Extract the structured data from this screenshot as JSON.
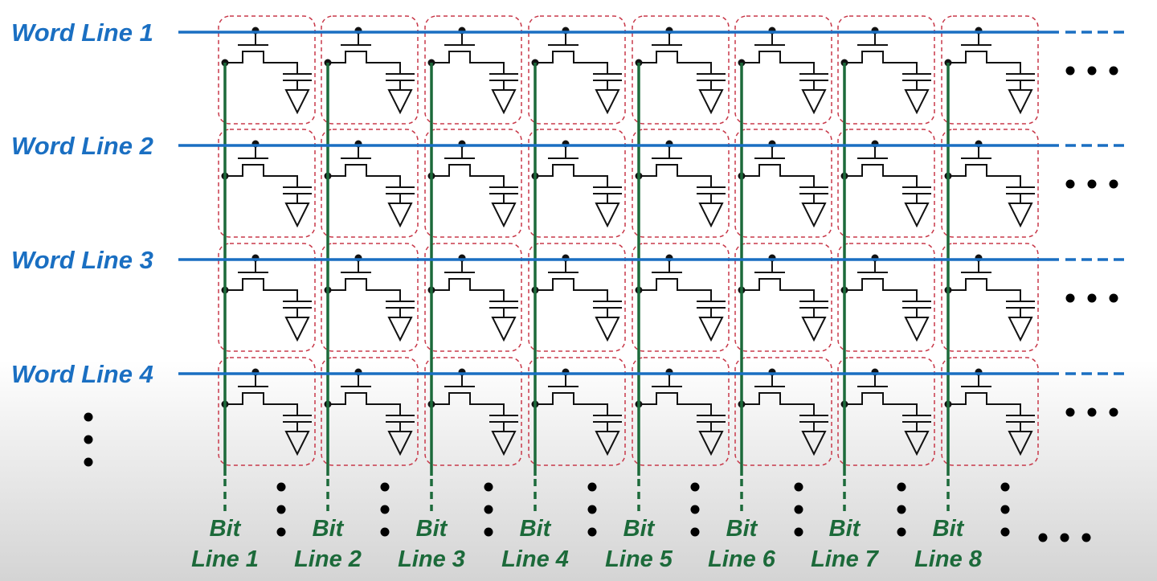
{
  "colors": {
    "word_line": "#1a6fc2",
    "bit_line": "#1c6a3a",
    "cell_border": "#c8394a",
    "circuit": "#111111"
  },
  "word_lines": [
    {
      "label": "Word Line 1"
    },
    {
      "label": "Word Line 2"
    },
    {
      "label": "Word Line 3"
    },
    {
      "label": "Word Line 4"
    }
  ],
  "bit_lines": [
    {
      "label_top": "Bit",
      "label_bottom": "Line 1"
    },
    {
      "label_top": "Bit",
      "label_bottom": "Line 2"
    },
    {
      "label_top": "Bit",
      "label_bottom": "Line 3"
    },
    {
      "label_top": "Bit",
      "label_bottom": "Line 4"
    },
    {
      "label_top": "Bit",
      "label_bottom": "Line 5"
    },
    {
      "label_top": "Bit",
      "label_bottom": "Line 6"
    },
    {
      "label_top": "Bit",
      "label_bottom": "Line 7"
    },
    {
      "label_top": "Bit",
      "label_bottom": "Line 8"
    }
  ]
}
